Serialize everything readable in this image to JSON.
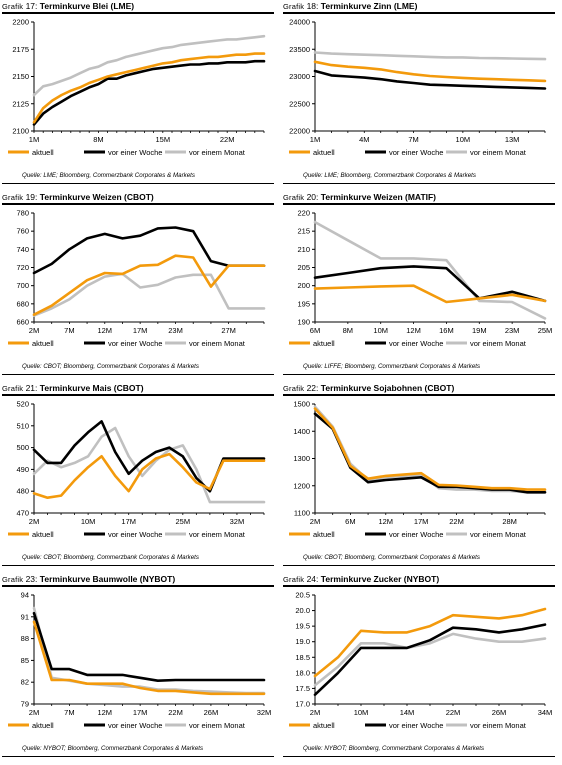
{
  "charts": [
    {
      "grafik": "Grafik",
      "num": "17:",
      "title": "Terminkurve Blei (LME)",
      "source": "Quelle: LME; Bloomberg, Commerzbank Corporates & Markets",
      "chart_data": {
        "type": "line",
        "ylim": [
          2100,
          2200
        ],
        "yticks": [
          "2100",
          "2125",
          "2150",
          "2175",
          "2200"
        ],
        "xn": 26,
        "xticks": [
          {
            "i": 0,
            "label": "1M"
          },
          {
            "i": 7,
            "label": "8M"
          },
          {
            "i": 14,
            "label": "15M"
          },
          {
            "i": 21,
            "label": "22M"
          }
        ],
        "legend": [
          "aktuell",
          "vor einer Woche",
          "vor einem Monat"
        ],
        "series": [
          {
            "name": "aktuell",
            "values": [
              2108,
              2121,
              2128,
              2133,
              2137,
              2140,
              2144,
              2147,
              2150,
              2152,
              2154,
              2156,
              2158,
              2160,
              2162,
              2163,
              2165,
              2166,
              2167,
              2168,
              2168,
              2169,
              2170,
              2170,
              2171,
              2171
            ]
          },
          {
            "name": "vor einer Woche",
            "values": [
              2106,
              2116,
              2122,
              2127,
              2132,
              2136,
              2140,
              2143,
              2148,
              2148,
              2151,
              2153,
              2155,
              2157,
              2158,
              2159,
              2160,
              2161,
              2161,
              2162,
              2162,
              2163,
              2163,
              2163,
              2164,
              2164
            ]
          },
          {
            "name": "vor einem Monat",
            "values": [
              2133,
              2141,
              2143,
              2146,
              2149,
              2153,
              2157,
              2159,
              2163,
              2165,
              2168,
              2170,
              2172,
              2174,
              2176,
              2177,
              2179,
              2180,
              2181,
              2182,
              2183,
              2184,
              2184,
              2185,
              2186,
              2187
            ]
          }
        ]
      }
    },
    {
      "grafik": "Grafik",
      "num": "18:",
      "title": "Terminkurve Zinn (LME)",
      "source": "Quelle: LME; Bloomberg, Commerzbank Corporates & Markets",
      "chart_data": {
        "type": "line",
        "ylim": [
          22000,
          24000
        ],
        "yticks": [
          "22000",
          "22500",
          "23000",
          "23500",
          "24000"
        ],
        "xn": 15,
        "xticks": [
          {
            "i": 0,
            "label": "1M"
          },
          {
            "i": 3,
            "label": "4M"
          },
          {
            "i": 6,
            "label": "7M"
          },
          {
            "i": 9,
            "label": "10M"
          },
          {
            "i": 12,
            "label": "13M"
          }
        ],
        "legend": [
          "aktuell",
          "vor einer Woche",
          "vor einem Monat"
        ],
        "series": [
          {
            "name": "aktuell",
            "values": [
              23270,
              23210,
              23180,
              23160,
              23130,
              23080,
              23040,
              23010,
              22990,
              22975,
              22960,
              22950,
              22940,
              22930,
              22920
            ]
          },
          {
            "name": "vor einer Woche",
            "values": [
              23100,
              23020,
              23000,
              22980,
              22950,
              22910,
              22880,
              22850,
              22840,
              22830,
              22820,
              22810,
              22800,
              22790,
              22780
            ]
          },
          {
            "name": "vor einem Monat",
            "values": [
              23440,
              23420,
              23410,
              23400,
              23390,
              23380,
              23370,
              23360,
              23350,
              23350,
              23340,
              23335,
              23330,
              23325,
              23320
            ]
          }
        ]
      }
    },
    {
      "grafik": "Grafik",
      "num": "19:",
      "title": "Terminkurve Weizen (CBOT)",
      "source": "Quelle: CBOT; Bloomberg, Commerzbank Corporates & Markets",
      "chart_data": {
        "type": "line",
        "ylim": [
          660,
          780
        ],
        "yticks": [
          "660",
          "680",
          "700",
          "720",
          "740",
          "760",
          "780"
        ],
        "xn": 14,
        "xticks": [
          {
            "i": 0,
            "label": "2M"
          },
          {
            "i": 2,
            "label": "7M"
          },
          {
            "i": 4,
            "label": "12M"
          },
          {
            "i": 6,
            "label": "17M"
          },
          {
            "i": 8,
            "label": "23M"
          },
          {
            "i": 11,
            "label": "27M"
          }
        ],
        "legend": [
          "aktuell",
          "vor einer Woche",
          "vor einem Monat"
        ],
        "series": [
          {
            "name": "aktuell",
            "values": [
              668,
              678,
              692,
              706,
              714,
              713,
              722,
              723,
              733,
              731,
              699,
              722,
              722,
              722
            ]
          },
          {
            "name": "vor einer Woche",
            "values": [
              714,
              724,
              740,
              752,
              757,
              752,
              755,
              763,
              764,
              760,
              727,
              722,
              722,
              722
            ]
          },
          {
            "name": "vor einem Monat",
            "values": [
              667,
              675,
              685,
              700,
              710,
              713,
              698,
              701,
              709,
              712,
              712,
              675,
              675,
              675
            ]
          }
        ]
      }
    },
    {
      "grafik": "Grafik",
      "num": "20:",
      "title": "Terminkurve Weizen (MATIF)",
      "source": "Quelle: LIFFE; Bloomberg, Commerzbank Corporates & Markets",
      "chart_data": {
        "type": "line",
        "ylim": [
          190,
          220
        ],
        "yticks": [
          "190",
          "195",
          "200",
          "205",
          "210",
          "215",
          "220"
        ],
        "xn": 8,
        "xticks": [
          {
            "i": 0,
            "label": "6M"
          },
          {
            "i": 1,
            "label": "8M"
          },
          {
            "i": 2,
            "label": "10M"
          },
          {
            "i": 3,
            "label": "12M"
          },
          {
            "i": 4,
            "label": "16M"
          },
          {
            "i": 5,
            "label": "19M"
          },
          {
            "i": 6,
            "label": "23M"
          },
          {
            "i": 7,
            "label": "25M"
          }
        ],
        "legend": [
          "aktuell",
          "vor einer Woche",
          "vor einem Monat"
        ],
        "series": [
          {
            "name": "aktuell",
            "values": [
              199.2,
              199.5,
              199.8,
              200.0,
              195.5,
              196.5,
              197.5,
              195.8
            ]
          },
          {
            "name": "vor einer Woche",
            "values": [
              202.2,
              203.5,
              204.8,
              205.3,
              204.8,
              196.5,
              198.3,
              195.8
            ]
          },
          {
            "name": "vor einem Monat",
            "values": [
              217.5,
              212.5,
              207.5,
              207.5,
              207.0,
              195.8,
              195.5,
              191.0
            ]
          }
        ]
      }
    },
    {
      "grafik": "Grafik",
      "num": "21:",
      "title": "Terminkurve Mais (CBOT)",
      "source": "Quelle: CBOT; Bloomberg, Commerzbank Corporates & Markets",
      "chart_data": {
        "type": "line",
        "ylim": [
          470,
          520
        ],
        "yticks": [
          "470",
          "480",
          "490",
          "500",
          "510",
          "520"
        ],
        "xn": 18,
        "xticks": [
          {
            "i": 0,
            "label": "2M"
          },
          {
            "i": 4,
            "label": "10M"
          },
          {
            "i": 7,
            "label": "17M"
          },
          {
            "i": 11,
            "label": "25M"
          },
          {
            "i": 15,
            "label": "32M"
          }
        ],
        "legend": [
          "aktuell",
          "vor einer Woche",
          "vor einem Monat"
        ],
        "series": [
          {
            "name": "aktuell",
            "values": [
              479,
              477,
              478,
              485,
              491,
              496,
              487,
              480,
              490,
              495,
              497,
              491,
              484,
              481,
              494,
              494,
              494,
              494
            ]
          },
          {
            "name": "vor einer Woche",
            "values": [
              499,
              493,
              493,
              501,
              507,
              512,
              498,
              488,
              494,
              498,
              500,
              496,
              486,
              480,
              495,
              495,
              495,
              495
            ]
          },
          {
            "name": "vor einem Monat",
            "values": [
              488,
              494,
              491,
              493,
              496,
              505,
              509,
              496,
              487,
              494,
              499,
              501,
              490,
              475,
              475,
              475,
              475,
              475
            ]
          }
        ]
      }
    },
    {
      "grafik": "Grafik",
      "num": "22:",
      "title": "Terminkurve Sojabohnen (CBOT)",
      "source": "Quelle: CBOT; Bloomberg, Commerzbank Corporates & Markets",
      "chart_data": {
        "type": "line",
        "ylim": [
          1100,
          1500
        ],
        "yticks": [
          "1100",
          "1200",
          "1300",
          "1400",
          "1500"
        ],
        "xn": 14,
        "xticks": [
          {
            "i": 0,
            "label": "2M"
          },
          {
            "i": 2,
            "label": "6M"
          },
          {
            "i": 4,
            "label": "12M"
          },
          {
            "i": 6,
            "label": "17M"
          },
          {
            "i": 8,
            "label": "22M"
          },
          {
            "i": 11,
            "label": "28M"
          }
        ],
        "legend": [
          "aktuell",
          "vor einer Woche",
          "vor einem Monat"
        ],
        "series": [
          {
            "name": "aktuell",
            "values": [
              1483,
              1413,
              1273,
              1226,
              1236,
              1241,
              1246,
              1203,
              1201,
              1196,
              1191,
              1191,
              1186,
              1186
            ]
          },
          {
            "name": "vor einer Woche",
            "values": [
              1464,
              1409,
              1266,
              1213,
              1221,
              1226,
              1231,
              1196,
              1196,
              1191,
              1186,
              1186,
              1176,
              1176
            ]
          },
          {
            "name": "vor einem Monat",
            "values": [
              1490,
              1417,
              1281,
              1221,
              1231,
              1236,
              1241,
              1191,
              1186,
              1186,
              1181,
              1181,
              1176,
              1176
            ]
          }
        ]
      }
    },
    {
      "grafik": "Grafik",
      "num": "23:",
      "title": "Terminkurve Baumwolle (NYBOT)",
      "source": "Quelle: NYBOT; Bloomberg, Commerzbank Corporates & Markets",
      "chart_data": {
        "type": "line",
        "ylim": [
          79,
          94
        ],
        "yticks": [
          "79",
          "82",
          "85",
          "88",
          "91",
          "94"
        ],
        "xn": 14,
        "xticks": [
          {
            "i": 0,
            "label": "2M"
          },
          {
            "i": 2,
            "label": "7M"
          },
          {
            "i": 4,
            "label": "12M"
          },
          {
            "i": 6,
            "label": "17M"
          },
          {
            "i": 8,
            "label": "22M"
          },
          {
            "i": 10,
            "label": "26M"
          },
          {
            "i": 13,
            "label": "32M"
          }
        ],
        "legend": [
          "aktuell",
          "vor einer Woche",
          "vor einem Monat"
        ],
        "series": [
          {
            "name": "aktuell",
            "values": [
              90.3,
              82.3,
              82.3,
              81.8,
              81.8,
              81.8,
              81.2,
              80.8,
              80.8,
              80.6,
              80.4,
              80.4,
              80.4,
              80.4
            ]
          },
          {
            "name": "vor einer Woche",
            "values": [
              91.5,
              83.8,
              83.8,
              83.0,
              83.0,
              83.0,
              82.6,
              82.2,
              82.3,
              82.3,
              82.3,
              82.3,
              82.3,
              82.3
            ]
          },
          {
            "name": "vor einem Monat",
            "values": [
              92.2,
              82.6,
              82.2,
              81.8,
              81.6,
              81.4,
              81.4,
              81.0,
              81.0,
              80.8,
              80.7,
              80.6,
              80.5,
              80.5
            ]
          }
        ]
      }
    },
    {
      "grafik": "Grafik",
      "num": "24:",
      "title": "Terminkurve Zucker (NYBOT)",
      "source": "Quelle: NYBOT; Bloomberg, Commerzbank Corporates & Markets",
      "chart_data": {
        "type": "line",
        "ylim": [
          17.0,
          20.5
        ],
        "yticks": [
          "17.0",
          "17.5",
          "18.0",
          "18.5",
          "19.0",
          "19.5",
          "20.0",
          "20.5"
        ],
        "xn": 11,
        "xticks": [
          {
            "i": 0,
            "label": "2M"
          },
          {
            "i": 2,
            "label": "10M"
          },
          {
            "i": 4,
            "label": "14M"
          },
          {
            "i": 6,
            "label": "22M"
          },
          {
            "i": 8,
            "label": "26M"
          },
          {
            "i": 10,
            "label": "34M"
          }
        ],
        "legend": [
          "aktuell",
          "vor einer Woche",
          "vor einem Monat"
        ],
        "series": [
          {
            "name": "aktuell",
            "values": [
              17.9,
              18.5,
              19.35,
              19.3,
              19.3,
              19.5,
              19.85,
              19.8,
              19.75,
              19.85,
              20.05
            ]
          },
          {
            "name": "vor einer Woche",
            "values": [
              17.3,
              18.0,
              18.8,
              18.8,
              18.8,
              19.05,
              19.45,
              19.4,
              19.3,
              19.4,
              19.55
            ]
          },
          {
            "name": "vor einem Monat",
            "values": [
              17.6,
              18.2,
              18.95,
              18.95,
              18.8,
              18.95,
              19.25,
              19.1,
              19.0,
              19.0,
              19.1
            ]
          }
        ]
      }
    }
  ],
  "colors": {
    "aktuell": "#f39a0c",
    "vor einer Woche": "#000000",
    "vor einem Monat": "#c0c0c0",
    "grid": "#000000"
  }
}
